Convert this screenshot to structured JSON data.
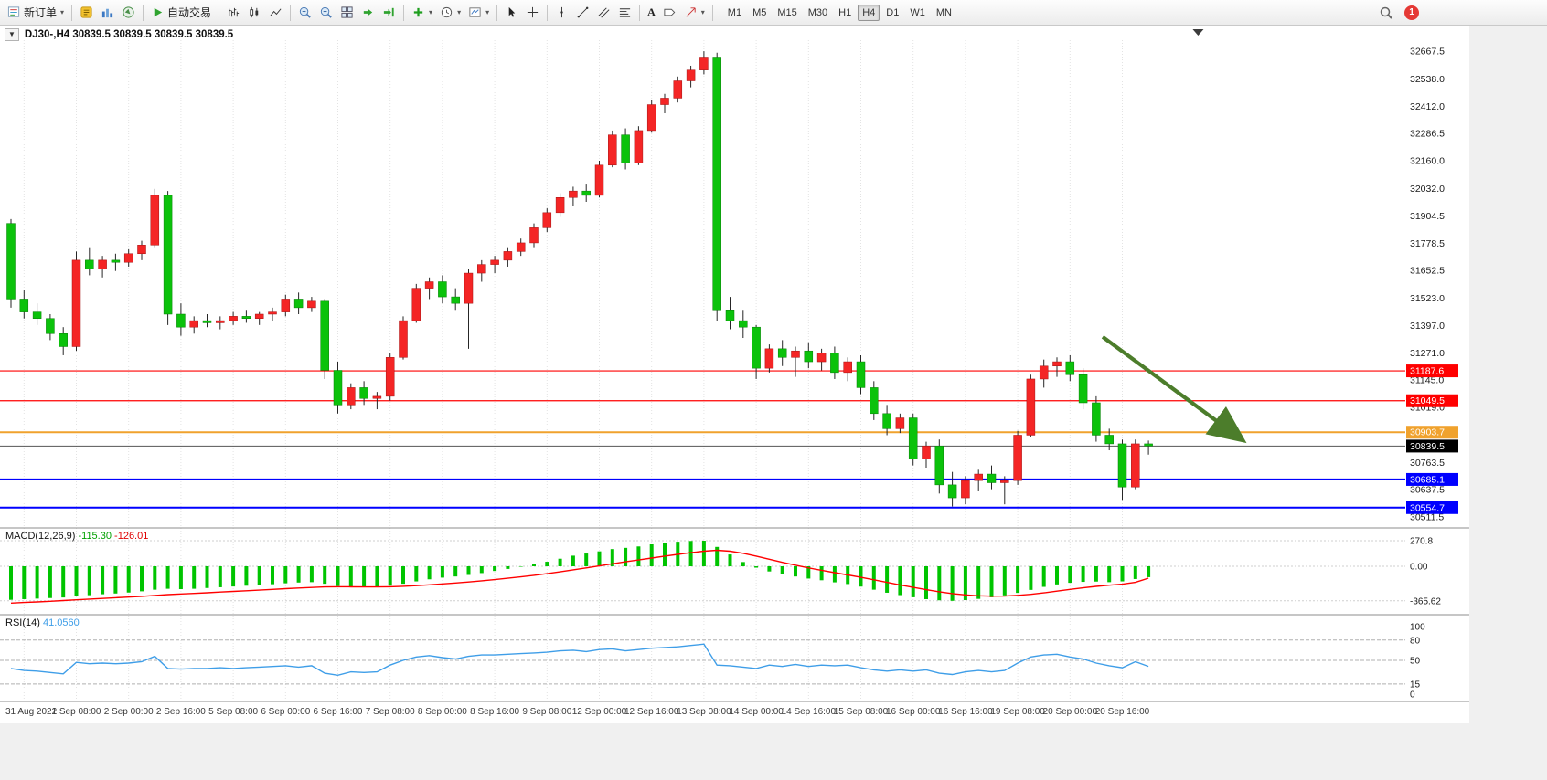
{
  "toolbar": {
    "new_order_label": "新订单",
    "auto_trading_label": "自动交易",
    "text_tool_label": "A",
    "timeframes": [
      "M1",
      "M5",
      "M15",
      "M30",
      "H1",
      "H4",
      "D1",
      "W1",
      "MN"
    ],
    "active_timeframe": "H4",
    "notification_count": "1"
  },
  "chart_header": {
    "one_click_arrow": "▼",
    "title": "DJ30-,H4 30839.5 30839.5 30839.5 30839.5"
  },
  "colors": {
    "up_candle": "#f42525",
    "down_candle": "#0bc20b",
    "wick": "#262626",
    "macd_histogram": "#00c400",
    "macd_signal": "#ff0000",
    "rsi_line": "#3f9ee8",
    "grid": "#e3e3e3",
    "axis_text": "#1a1a1a",
    "time_text": "#3a3a3a"
  },
  "chart_data": [
    {
      "type": "candlestick",
      "symbol": "DJ30-",
      "period": "H4",
      "ohlc_display": [
        "30839.5",
        "30839.5",
        "30839.5",
        "30839.5"
      ],
      "x_labels": [
        "31 Aug 2022",
        "1 Sep 08:00",
        "2 Sep 00:00",
        "2 Sep 16:00",
        "5 Sep 08:00",
        "6 Sep 00:00",
        "6 Sep 16:00",
        "7 Sep 08:00",
        "8 Sep 00:00",
        "8 Sep 16:00",
        "9 Sep 08:00",
        "12 Sep 00:00",
        "12 Sep 16:00",
        "13 Sep 08:00",
        "14 Sep 00:00",
        "14 Sep 16:00",
        "15 Sep 08:00",
        "16 Sep 00:00",
        "16 Sep 16:00",
        "19 Sep 08:00",
        "20 Sep 00:00",
        "20 Sep 16:00"
      ],
      "first_label_bar": 1,
      "label_every_bars": 4,
      "y_ticks": [
        32667.5,
        32538.0,
        32412.0,
        32286.5,
        32160.0,
        32032.0,
        31904.5,
        31778.5,
        31652.5,
        31523.0,
        31397.0,
        31271.0,
        31145.0,
        31019.0,
        30763.5,
        30637.5,
        30511.5
      ],
      "hlines": [
        {
          "price": 31187.6,
          "color": "#ff0000",
          "width": 1.2
        },
        {
          "price": 31049.5,
          "color": "#ff0000",
          "width": 1.2
        },
        {
          "price": 30903.7,
          "color": "#f0a22d",
          "width": 2
        },
        {
          "price": 30685.1,
          "color": "#0000ff",
          "width": 2
        },
        {
          "price": 30554.7,
          "color": "#0000ff",
          "width": 2
        }
      ],
      "current_price": 30839.5,
      "candles": [
        [
          31870,
          31890,
          31480,
          31520
        ],
        [
          31520,
          31560,
          31430,
          31460
        ],
        [
          31460,
          31500,
          31400,
          31430
        ],
        [
          31430,
          31450,
          31330,
          31360
        ],
        [
          31360,
          31390,
          31260,
          31300
        ],
        [
          31300,
          31740,
          31280,
          31700
        ],
        [
          31700,
          31760,
          31630,
          31660
        ],
        [
          31660,
          31720,
          31620,
          31700
        ],
        [
          31700,
          31730,
          31650,
          31690
        ],
        [
          31690,
          31750,
          31670,
          31730
        ],
        [
          31730,
          31790,
          31700,
          31770
        ],
        [
          31770,
          32030,
          31760,
          32000
        ],
        [
          32000,
          32020,
          31400,
          31450
        ],
        [
          31450,
          31500,
          31350,
          31390
        ],
        [
          31390,
          31440,
          31360,
          31420
        ],
        [
          31420,
          31450,
          31390,
          31410
        ],
        [
          31410,
          31440,
          31380,
          31420
        ],
        [
          31420,
          31460,
          31400,
          31440
        ],
        [
          31440,
          31470,
          31410,
          31430
        ],
        [
          31430,
          31460,
          31400,
          31450
        ],
        [
          31450,
          31480,
          31420,
          31460
        ],
        [
          31460,
          31540,
          31440,
          31520
        ],
        [
          31520,
          31550,
          31450,
          31480
        ],
        [
          31480,
          31530,
          31460,
          31510
        ],
        [
          31510,
          31520,
          31150,
          31190
        ],
        [
          31190,
          31230,
          30990,
          31030
        ],
        [
          31030,
          31130,
          31010,
          31110
        ],
        [
          31110,
          31140,
          31030,
          31060
        ],
        [
          31060,
          31090,
          31010,
          31070
        ],
        [
          31070,
          31270,
          31050,
          31250
        ],
        [
          31250,
          31440,
          31240,
          31420
        ],
        [
          31420,
          31590,
          31410,
          31570
        ],
        [
          31570,
          31620,
          31520,
          31600
        ],
        [
          31600,
          31630,
          31500,
          31530
        ],
        [
          31530,
          31570,
          31470,
          31500
        ],
        [
          31500,
          31660,
          31290,
          31640
        ],
        [
          31640,
          31700,
          31600,
          31680
        ],
        [
          31680,
          31720,
          31640,
          31700
        ],
        [
          31700,
          31760,
          31670,
          31740
        ],
        [
          31740,
          31800,
          31720,
          31780
        ],
        [
          31780,
          31870,
          31760,
          31850
        ],
        [
          31850,
          31940,
          31830,
          31920
        ],
        [
          31920,
          32010,
          31900,
          31990
        ],
        [
          31990,
          32040,
          31950,
          32020
        ],
        [
          32020,
          32050,
          31970,
          32000
        ],
        [
          32000,
          32160,
          31990,
          32140
        ],
        [
          32140,
          32300,
          32130,
          32280
        ],
        [
          32280,
          32310,
          32120,
          32150
        ],
        [
          32150,
          32320,
          32140,
          32300
        ],
        [
          32300,
          32440,
          32290,
          32420
        ],
        [
          32420,
          32470,
          32380,
          32450
        ],
        [
          32450,
          32550,
          32430,
          32530
        ],
        [
          32530,
          32600,
          32500,
          32580
        ],
        [
          32580,
          32667,
          32560,
          32640
        ],
        [
          32640,
          32660,
          31420,
          31470
        ],
        [
          31470,
          31530,
          31380,
          31420
        ],
        [
          31420,
          31470,
          31340,
          31390
        ],
        [
          31390,
          31400,
          31150,
          31200
        ],
        [
          31200,
          31310,
          31180,
          31290
        ],
        [
          31290,
          31330,
          31210,
          31250
        ],
        [
          31250,
          31300,
          31160,
          31280
        ],
        [
          31280,
          31320,
          31200,
          31230
        ],
        [
          31230,
          31290,
          31190,
          31270
        ],
        [
          31270,
          31300,
          31150,
          31180
        ],
        [
          31180,
          31250,
          31140,
          31230
        ],
        [
          31230,
          31260,
          31080,
          31110
        ],
        [
          31110,
          31140,
          30960,
          30990
        ],
        [
          30990,
          31030,
          30890,
          30920
        ],
        [
          30920,
          30990,
          30900,
          30970
        ],
        [
          30970,
          30990,
          30750,
          30780
        ],
        [
          30780,
          30860,
          30740,
          30840
        ],
        [
          30840,
          30870,
          30620,
          30660
        ],
        [
          30660,
          30720,
          30560,
          30600
        ],
        [
          30600,
          30700,
          30570,
          30680
        ],
        [
          30680,
          30730,
          30630,
          30710
        ],
        [
          30710,
          30750,
          30640,
          30670
        ],
        [
          30670,
          30700,
          30570,
          30680
        ],
        [
          30680,
          30910,
          30660,
          30890
        ],
        [
          30890,
          31170,
          30880,
          31150
        ],
        [
          31150,
          31240,
          31110,
          31210
        ],
        [
          31210,
          31250,
          31160,
          31230
        ],
        [
          31230,
          31260,
          31140,
          31170
        ],
        [
          31170,
          31200,
          31010,
          31040
        ],
        [
          31040,
          31070,
          30860,
          30890
        ],
        [
          30890,
          30920,
          30820,
          30850
        ],
        [
          30850,
          30870,
          30590,
          30650
        ],
        [
          30650,
          30870,
          30640,
          30850
        ],
        [
          30850,
          30865,
          30800,
          30840
        ]
      ],
      "annotations": [
        {
          "type": "arrow",
          "from_bar": 83.5,
          "from_price": 31345,
          "to_bar": 93.8,
          "to_price": 30885,
          "color": "#4c7d2b"
        }
      ],
      "shift_marker_bar": 90.8
    },
    {
      "type": "macd",
      "label": "MACD(12,26,9)",
      "main_value": "-115.30",
      "signal_value": "-126.01",
      "y_ticks": [
        "270.8",
        "0.00",
        "-365.62"
      ],
      "histogram": [
        -355,
        -348,
        -342,
        -336,
        -330,
        -318,
        -306,
        -296,
        -288,
        -278,
        -265,
        -248,
        -238,
        -242,
        -238,
        -230,
        -222,
        -214,
        -206,
        -198,
        -190,
        -180,
        -172,
        -168,
        -185,
        -210,
        -220,
        -222,
        -218,
        -205,
        -185,
        -160,
        -138,
        -120,
        -108,
        -92,
        -72,
        -50,
        -28,
        -5,
        20,
        48,
        80,
        112,
        135,
        158,
        182,
        195,
        210,
        232,
        248,
        260,
        268,
        270.8,
        205,
        125,
        45,
        -15,
        -55,
        -85,
        -108,
        -130,
        -148,
        -170,
        -188,
        -215,
        -248,
        -280,
        -305,
        -328,
        -348,
        -360,
        -365.6,
        -358,
        -345,
        -328,
        -308,
        -282,
        -250,
        -218,
        -192,
        -175,
        -165,
        -162,
        -168,
        -160,
        -135,
        -115.3
      ],
      "signal": [
        -390,
        -383,
        -377,
        -370,
        -363,
        -355,
        -347,
        -340,
        -333,
        -326,
        -318,
        -309,
        -300,
        -293,
        -287,
        -280,
        -273,
        -266,
        -259,
        -252,
        -245,
        -237,
        -230,
        -224,
        -219,
        -217,
        -218,
        -219,
        -219,
        -217,
        -212,
        -205,
        -196,
        -187,
        -177,
        -166,
        -154,
        -141,
        -127,
        -112,
        -96,
        -78,
        -59,
        -38,
        -17,
        4,
        26,
        47,
        67,
        87,
        107,
        126,
        144,
        160,
        169,
        160,
        137,
        107,
        74,
        42,
        12,
        -17,
        -43,
        -68,
        -92,
        -117,
        -143,
        -170,
        -197,
        -223,
        -248,
        -270,
        -289,
        -303,
        -312,
        -316,
        -315,
        -308,
        -297,
        -281,
        -263,
        -245,
        -228,
        -213,
        -200,
        -190,
        -170,
        -126
      ]
    },
    {
      "type": "rsi",
      "label": "RSI(14)",
      "value": "41.0560",
      "y_ticks": [
        "100",
        "80",
        "50",
        "15",
        "0"
      ],
      "levels": [
        80,
        50,
        15
      ],
      "values": [
        38,
        35,
        34,
        32,
        30,
        47,
        45,
        46,
        45,
        46,
        48,
        56,
        38,
        37,
        38,
        38,
        39,
        38,
        39,
        40,
        41,
        42,
        40,
        42,
        31,
        28,
        33,
        32,
        33,
        43,
        50,
        55,
        57,
        54,
        52,
        56,
        58,
        58,
        59,
        60,
        61,
        62,
        64,
        65,
        63,
        66,
        67,
        64,
        66,
        68,
        69,
        70,
        72,
        74,
        43,
        42,
        40,
        38,
        43,
        41,
        44,
        41,
        43,
        42,
        43,
        39,
        36,
        34,
        36,
        34,
        36,
        31,
        29,
        33,
        35,
        33,
        35,
        46,
        55,
        58,
        59,
        55,
        52,
        46,
        42,
        39,
        48,
        41.06
      ]
    }
  ]
}
